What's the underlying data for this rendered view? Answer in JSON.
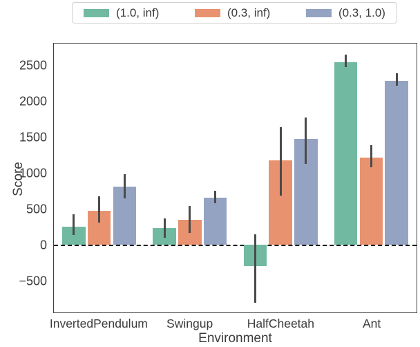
{
  "chart_data": {
    "type": "bar",
    "title": "",
    "xlabel": "Environment",
    "ylabel": "Score",
    "categories": [
      "InvertedPendulum",
      "Swingup",
      "HalfCheetah",
      "Ant"
    ],
    "series": [
      {
        "name": "(1.0, inf)",
        "color": "#71b9a0",
        "values": [
          250,
          230,
          -300,
          2555
        ],
        "err_low": [
          135,
          100,
          -810,
          2480
        ],
        "err_high": [
          430,
          365,
          145,
          2660
        ]
      },
      {
        "name": "(0.3, inf)",
        "color": "#e9926f",
        "values": [
          475,
          345,
          1180,
          1220
        ],
        "err_low": [
          305,
          160,
          685,
          1080
        ],
        "err_high": [
          680,
          540,
          1640,
          1390
        ]
      },
      {
        "name": "(0.3, 1.0)",
        "color": "#95a3c3",
        "values": [
          810,
          660,
          1480,
          2290
        ],
        "err_low": [
          650,
          580,
          1135,
          2220
        ],
        "err_high": [
          990,
          750,
          1780,
          2395
        ]
      }
    ],
    "yticks": [
      -500,
      0,
      500,
      1000,
      1500,
      2000,
      2500
    ],
    "ylim": [
      -947,
      2813
    ],
    "zero_line_value": 0,
    "error_color": "#4a4a4a",
    "legend_position": "top",
    "grid": false
  }
}
